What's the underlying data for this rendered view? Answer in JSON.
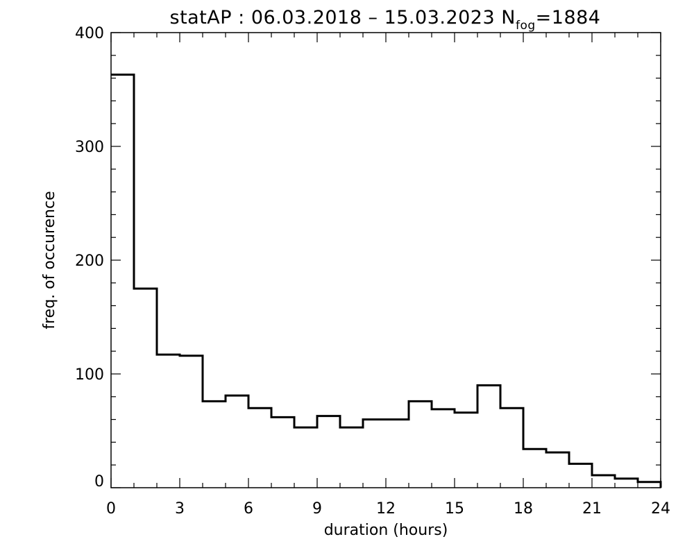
{
  "chart_data": {
    "type": "step",
    "title_main": "statAP : 06.03.2018 – 15.03.2023 N",
    "title_sub": "fog",
    "title_tail": "=1884",
    "xlabel": "duration (hours)",
    "ylabel": "freq. of occurence",
    "xlim": [
      0,
      24
    ],
    "ylim": [
      0,
      400
    ],
    "xticks": [
      0,
      3,
      6,
      9,
      12,
      15,
      18,
      21,
      24
    ],
    "yticks": [
      0,
      100,
      200,
      300,
      400
    ],
    "bin_edges": [
      0,
      1,
      2,
      3,
      4,
      5,
      6,
      7,
      8,
      9,
      10,
      11,
      12,
      13,
      14,
      15,
      16,
      17,
      18,
      19,
      20,
      21,
      22,
      23,
      24
    ],
    "values": [
      363,
      175,
      117,
      116,
      76,
      81,
      70,
      62,
      53,
      63,
      53,
      60,
      60,
      76,
      69,
      66,
      90,
      70,
      34,
      31,
      21,
      11,
      8,
      5
    ],
    "grid": false,
    "line_color": "#000000"
  }
}
